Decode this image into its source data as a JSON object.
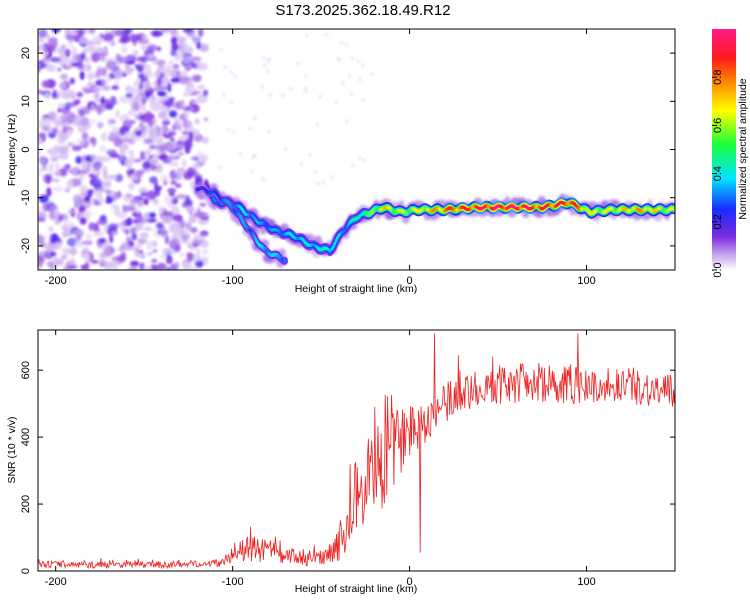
{
  "title": "S173.2025.362.18.49.R12",
  "chart_data": [
    {
      "type": "heatmap",
      "name": "spectrogram",
      "xlabel": "Height of straight line (km)",
      "ylabel": "Frequency (Hz)",
      "xlim": [
        -210,
        150
      ],
      "ylim": [
        -25,
        25
      ],
      "xticks": [
        -200,
        -100,
        0,
        100
      ],
      "xtick_labels": [
        "-200",
        "-100",
        "0",
        "100"
      ],
      "yticks": [
        20,
        10,
        0,
        -10,
        -20
      ],
      "ytick_labels": [
        "20",
        "10",
        "0",
        "-10",
        "-20"
      ],
      "colorbar": {
        "label": "Normalized spectral amplitude",
        "range": [
          0,
          1
        ],
        "ticks": [
          0.0,
          0.2,
          0.4,
          0.6,
          0.8
        ],
        "tick_labels": [
          "0.0",
          "0.2",
          "0.4",
          "0.6",
          "0.8"
        ],
        "colormap": [
          "#ffffff",
          "#7b2be0",
          "#1a2bff",
          "#00e5ff",
          "#19ff3c",
          "#ffff00",
          "#ff8800",
          "#ff1a1a",
          "#ff1a8c"
        ]
      },
      "noise_region_x": [
        -210,
        -115
      ],
      "signal_ridge": [
        {
          "x": -115,
          "freq": -7,
          "amp": 0.15
        },
        {
          "x": -110,
          "freq": -11,
          "amp": 0.3
        },
        {
          "x": -100,
          "freq": -11,
          "amp": 0.3
        },
        {
          "x": -93,
          "freq": -13,
          "amp": 0.35
        },
        {
          "x": -85,
          "freq": -15,
          "amp": 0.3
        },
        {
          "x": -75,
          "freq": -17,
          "amp": 0.3
        },
        {
          "x": -65,
          "freq": -18,
          "amp": 0.35
        },
        {
          "x": -55,
          "freq": -20,
          "amp": 0.35
        },
        {
          "x": -45,
          "freq": -21,
          "amp": 0.4
        },
        {
          "x": -38,
          "freq": -17,
          "amp": 0.3
        },
        {
          "x": -30,
          "freq": -14,
          "amp": 0.4
        },
        {
          "x": -22,
          "freq": -13,
          "amp": 0.5
        },
        {
          "x": -15,
          "freq": -12,
          "amp": 0.65
        },
        {
          "x": -5,
          "freq": -13,
          "amp": 0.55
        },
        {
          "x": 5,
          "freq": -12.5,
          "amp": 0.6
        },
        {
          "x": 20,
          "freq": -12.5,
          "amp": 0.75
        },
        {
          "x": 40,
          "freq": -12,
          "amp": 0.85
        },
        {
          "x": 60,
          "freq": -12,
          "amp": 0.9
        },
        {
          "x": 75,
          "freq": -12,
          "amp": 0.8
        },
        {
          "x": 90,
          "freq": -11,
          "amp": 0.85
        },
        {
          "x": 102,
          "freq": -13,
          "amp": 0.6
        },
        {
          "x": 115,
          "freq": -12.5,
          "amp": 0.6
        },
        {
          "x": 130,
          "freq": -12.5,
          "amp": 0.7
        },
        {
          "x": 150,
          "freq": -12.5,
          "amp": 0.55
        }
      ],
      "secondary_ridge": [
        {
          "x": -120,
          "freq": -8,
          "amp": 0.2
        },
        {
          "x": -110,
          "freq": -9,
          "amp": 0.25
        },
        {
          "x": -100,
          "freq": -12,
          "amp": 0.3
        },
        {
          "x": -90,
          "freq": -17,
          "amp": 0.3
        },
        {
          "x": -82,
          "freq": -21,
          "amp": 0.35
        },
        {
          "x": -70,
          "freq": -23,
          "amp": 0.3
        }
      ]
    },
    {
      "type": "line",
      "name": "snr",
      "xlabel": "Height of straight line (km)",
      "ylabel": "SNR (10 * v/v)",
      "xlim": [
        -210,
        150
      ],
      "ylim": [
        0,
        720
      ],
      "xticks": [
        -200,
        -100,
        0,
        100
      ],
      "xtick_labels": [
        "-200",
        "-100",
        "0",
        "100"
      ],
      "yticks": [
        0,
        200,
        400,
        600
      ],
      "ytick_labels": [
        "0",
        "200",
        "400",
        "600"
      ],
      "color": "#ee2222",
      "series": [
        {
          "name": "SNR",
          "x": [
            -210,
            -200,
            -180,
            -160,
            -140,
            -120,
            -105,
            -100,
            -95,
            -90,
            -85,
            -80,
            -75,
            -70,
            -65,
            -60,
            -55,
            -50,
            -45,
            -40,
            -35,
            -30,
            -25,
            -20,
            -15,
            -10,
            -5,
            0,
            5,
            10,
            15,
            20,
            25,
            30,
            40,
            50,
            60,
            70,
            80,
            90,
            100,
            110,
            120,
            130,
            140,
            150
          ],
          "y": [
            20,
            20,
            18,
            20,
            18,
            22,
            25,
            60,
            55,
            70,
            60,
            65,
            50,
            40,
            45,
            35,
            40,
            40,
            60,
            80,
            150,
            220,
            270,
            300,
            320,
            350,
            400,
            420,
            440,
            460,
            480,
            500,
            520,
            540,
            550,
            555,
            560,
            565,
            560,
            560,
            550,
            555,
            560,
            550,
            540,
            530
          ],
          "amplitude": [
            10,
            10,
            10,
            10,
            10,
            10,
            12,
            30,
            35,
            40,
            35,
            35,
            30,
            25,
            25,
            20,
            25,
            25,
            35,
            50,
            90,
            120,
            150,
            150,
            140,
            130,
            110,
            90,
            80,
            70,
            65,
            60,
            60,
            60,
            60,
            60,
            60,
            60,
            60,
            60,
            55,
            55,
            55,
            55,
            55,
            55
          ],
          "notable_points": [
            {
              "x": 14,
              "y": 710
            },
            {
              "x": 6,
              "y": 55
            },
            {
              "x": 95,
              "y": 710
            }
          ]
        }
      ]
    }
  ]
}
